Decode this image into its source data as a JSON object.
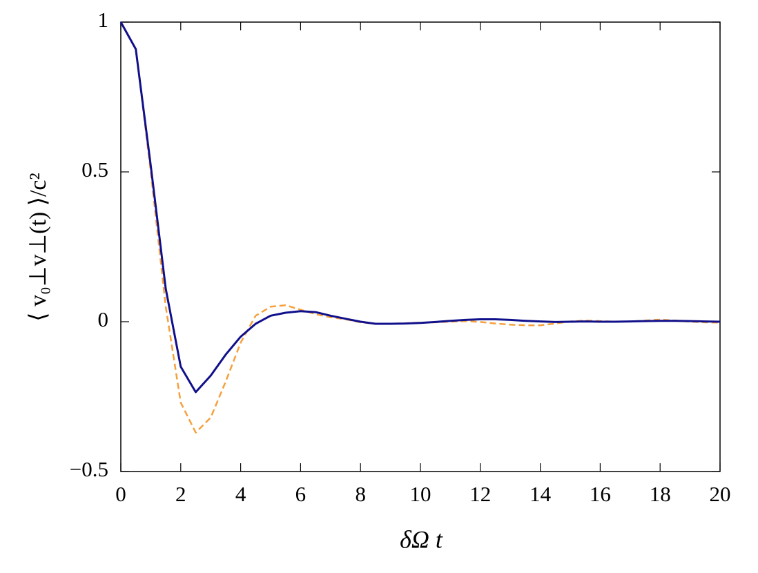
{
  "chart_data": {
    "type": "line",
    "xlabel": "δΩ t",
    "ylabel": "⟨ v₀⊥v⊥(t) ⟩/c²",
    "x": [
      0,
      0.5,
      1,
      1.5,
      2,
      2.5,
      3,
      3.5,
      4,
      4.5,
      5,
      5.5,
      6,
      6.5,
      7,
      7.5,
      8,
      8.5,
      9,
      9.5,
      10,
      10.5,
      11,
      11.5,
      12,
      12.5,
      13,
      13.5,
      14,
      14.5,
      15,
      15.5,
      16,
      16.5,
      17,
      17.5,
      18,
      18.5,
      19,
      19.5,
      20
    ],
    "series": [
      {
        "color": "#f5a03c",
        "linestyle": "dashed",
        "values": [
          1,
          0.91,
          0.5,
          0.05,
          -0.27,
          -0.37,
          -0.32,
          -0.2,
          -0.07,
          0.02,
          0.05,
          0.055,
          0.04,
          0.025,
          0.015,
          0.008,
          -0.002,
          -0.007,
          -0.007,
          -0.005,
          -0.003,
          -0.002,
          0,
          0.002,
          -0.001,
          -0.006,
          -0.01,
          -0.012,
          -0.012,
          -0.006,
          0.001,
          0.004,
          0.002,
          0,
          0.001,
          0.004,
          0.007,
          0.004,
          0,
          -0.002,
          -0.003
        ]
      },
      {
        "color": "#10108c",
        "linestyle": "solid",
        "values": [
          1,
          0.91,
          0.52,
          0.11,
          -0.15,
          -0.235,
          -0.18,
          -0.11,
          -0.05,
          -0.007,
          0.02,
          0.03,
          0.035,
          0.032,
          0.02,
          0.01,
          0,
          -0.007,
          -0.007,
          -0.006,
          -0.004,
          -0.001,
          0.003,
          0.006,
          0.008,
          0.008,
          0.006,
          0.003,
          0.001,
          -0.001,
          0,
          0.001,
          0,
          0,
          0.001,
          0.002,
          0.003,
          0.003,
          0.002,
          0.001,
          0
        ]
      }
    ],
    "xlim": [
      0,
      20
    ],
    "xticks": [
      0,
      2,
      4,
      6,
      8,
      10,
      12,
      14,
      16,
      18,
      20
    ],
    "ylim": [
      -0.5,
      1
    ],
    "yticks": [
      {
        "value": -0.5,
        "label": "−0.5"
      },
      0,
      0.5,
      1
    ]
  }
}
